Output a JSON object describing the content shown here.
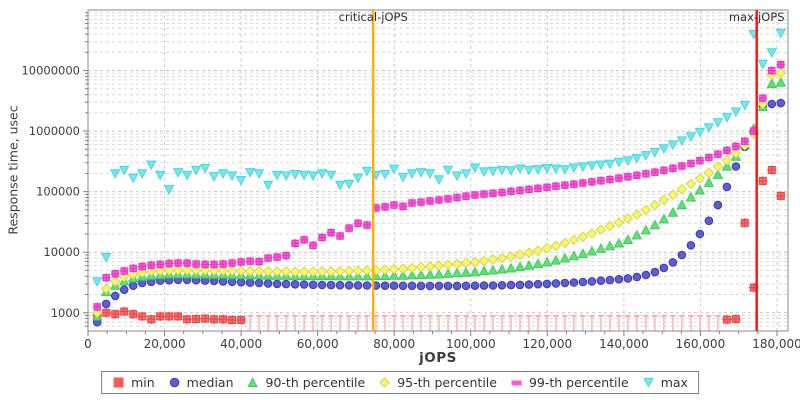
{
  "annotations": {
    "critical_label": "critical-jOPS",
    "max_label": "max-jOPS",
    "critical_jops": 74500,
    "max_jops": 174700,
    "critical_color": "#FFAE00",
    "max_color": "#FF0E0E"
  },
  "axes": {
    "x": {
      "title": "jOPS",
      "min": 0,
      "max": 182900,
      "major_tick_step": 20000,
      "minor_tick_step": 5000,
      "tick_values": [
        0,
        20000,
        40000,
        60000,
        80000,
        100000,
        120000,
        140000,
        160000,
        180000
      ],
      "tick_labels": [
        "0",
        "20,000",
        "40,000",
        "60,000",
        "80,000",
        "100,000",
        "120,000",
        "140,000",
        "160,000",
        "180,000"
      ]
    },
    "y": {
      "title": "Response time, usec",
      "scale": "log",
      "min": 500,
      "max": 100000000,
      "tick_values": [
        1000,
        10000,
        100000,
        1000000,
        10000000
      ],
      "tick_labels": [
        "1000",
        "10000",
        "100000",
        "1000000",
        "10000000"
      ]
    }
  },
  "legend": [
    {
      "label": "min",
      "shape": "square",
      "color": "#FF5A5A",
      "stroke": "#E84545"
    },
    {
      "label": "median",
      "shape": "circle",
      "color": "#5E5ED2",
      "stroke": "#3A3AAE"
    },
    {
      "label": "90-th percentile",
      "shape": "triangle-up",
      "color": "#5FE273",
      "stroke": "#3FC95C"
    },
    {
      "label": "95-th percentile",
      "shape": "diamond",
      "color": "#F7F768",
      "stroke": "#D6D64E"
    },
    {
      "label": "99-th percentile",
      "shape": "bar",
      "color": "#FF54DD",
      "stroke": "#E238BF"
    },
    {
      "label": "max",
      "shape": "triangle-down",
      "color": "#6FE9EF",
      "stroke": "#4ED3DC"
    }
  ],
  "chart_data": {
    "type": "scatter",
    "title": "",
    "xlabel": "jOPS",
    "ylabel": "Response time, usec",
    "grid": true,
    "legend_position": "bottom",
    "clip_threshold_usec": 560,
    "x_jops": [
      2400,
      4750,
      7100,
      9450,
      11800,
      14150,
      16500,
      18850,
      21200,
      23550,
      25900,
      28250,
      30600,
      32950,
      35300,
      37650,
      40000,
      42350,
      44700,
      47050,
      49400,
      51750,
      54100,
      56450,
      58800,
      61150,
      63500,
      65850,
      68200,
      70550,
      72900,
      75250,
      77600,
      79950,
      82300,
      84650,
      87000,
      89350,
      91700,
      94050,
      96400,
      98750,
      101100,
      103450,
      105800,
      108150,
      110500,
      112850,
      115200,
      117550,
      119900,
      122250,
      124600,
      126950,
      129300,
      131650,
      134000,
      136350,
      138700,
      141050,
      143400,
      145750,
      148100,
      150450,
      152800,
      155150,
      157500,
      159850,
      162200,
      164550,
      166900,
      169250,
      171600,
      173950,
      176300,
      178650,
      181000
    ],
    "series": [
      {
        "name": "min",
        "marker": "square-cross",
        "color": "#FF6A6A",
        "stroke": "#E84545",
        "values": [
          900,
          1000,
          950,
          1050,
          950,
          870,
          780,
          870,
          870,
          870,
          780,
          790,
          800,
          780,
          780,
          760,
          760,
          520,
          520,
          520,
          520,
          520,
          520,
          520,
          520,
          520,
          520,
          520,
          520,
          520,
          520,
          520,
          520,
          520,
          520,
          520,
          520,
          520,
          520,
          520,
          520,
          520,
          520,
          520,
          520,
          520,
          520,
          520,
          520,
          520,
          520,
          520,
          520,
          520,
          520,
          520,
          520,
          520,
          520,
          520,
          520,
          520,
          520,
          520,
          520,
          520,
          520,
          520,
          520,
          520,
          770,
          790,
          30500,
          2600,
          150000,
          228000,
          85000
        ]
      },
      {
        "name": "median",
        "marker": "circle",
        "color": "#5E5ED2",
        "stroke": "#3A3AAE",
        "values": [
          700,
          1400,
          1900,
          2400,
          2800,
          3100,
          3250,
          3400,
          3450,
          3500,
          3500,
          3450,
          3400,
          3350,
          3300,
          3250,
          3200,
          3150,
          3100,
          3050,
          3000,
          2980,
          2950,
          2930,
          2900,
          2880,
          2860,
          2850,
          2840,
          2830,
          2820,
          2810,
          2800,
          2800,
          2790,
          2790,
          2780,
          2780,
          2780,
          2780,
          2780,
          2790,
          2800,
          2810,
          2820,
          2840,
          2860,
          2890,
          2920,
          2960,
          3000,
          3050,
          3100,
          3160,
          3220,
          3300,
          3380,
          3470,
          3580,
          3700,
          3900,
          4200,
          4700,
          5500,
          6800,
          9000,
          13000,
          20000,
          33000,
          60000,
          120000,
          260000,
          550000,
          1000000,
          2600000,
          2800000,
          2900000
        ]
      },
      {
        "name": "90-th percentile",
        "marker": "triangle-up",
        "color": "#5FE273",
        "stroke": "#3FC95C",
        "values": [
          870,
          2200,
          2800,
          3300,
          3700,
          3950,
          4100,
          4200,
          4300,
          4350,
          4350,
          4300,
          4300,
          4250,
          4250,
          4200,
          4200,
          4150,
          4150,
          4100,
          4100,
          4100,
          4050,
          4050,
          4050,
          4050,
          4050,
          4000,
          4000,
          4000,
          4000,
          4050,
          4050,
          4100,
          4100,
          4150,
          4200,
          4250,
          4300,
          4400,
          4500,
          4600,
          4700,
          4850,
          5000,
          5200,
          5400,
          5700,
          6000,
          6400,
          6800,
          7300,
          7900,
          8600,
          9400,
          10300,
          11400,
          12600,
          14000,
          16000,
          19000,
          23000,
          28000,
          35000,
          45000,
          60000,
          80000,
          105000,
          140000,
          190000,
          260000,
          380000,
          600000,
          1100000,
          2500000,
          6000000,
          6300000
        ]
      },
      {
        "name": "95-th percentile",
        "marker": "diamond",
        "color": "#F7F768",
        "stroke": "#D6D64E",
        "values": [
          1000,
          2500,
          3300,
          3900,
          4300,
          4600,
          4800,
          4900,
          5000,
          5050,
          5050,
          5000,
          5000,
          4950,
          4950,
          4900,
          4900,
          4850,
          4850,
          4800,
          4800,
          4800,
          4750,
          4750,
          4750,
          4800,
          4800,
          4850,
          4900,
          4950,
          5000,
          5050,
          5150,
          5250,
          5350,
          5500,
          5650,
          5800,
          6000,
          6200,
          6400,
          6650,
          6900,
          7200,
          7600,
          8000,
          8500,
          9100,
          9800,
          10600,
          11600,
          12800,
          14200,
          16000,
          18000,
          20500,
          23500,
          27000,
          31000,
          36000,
          42000,
          50000,
          60000,
          73000,
          89000,
          110000,
          135000,
          165000,
          205000,
          260000,
          330000,
          430000,
          580000,
          900000,
          2800000,
          8500000,
          9000000
        ]
      },
      {
        "name": "99-th percentile",
        "marker": "square-cross-small",
        "color": "#FF54DD",
        "stroke": "#E238BF",
        "values": [
          1250,
          3800,
          4400,
          4900,
          5400,
          5800,
          6100,
          6300,
          6500,
          6600,
          6600,
          6400,
          6300,
          6300,
          6400,
          6600,
          6900,
          7100,
          7000,
          8000,
          8300,
          8800,
          14000,
          16000,
          13000,
          17500,
          21000,
          18500,
          25000,
          30000,
          28000,
          54000,
          56000,
          60000,
          57000,
          65000,
          67000,
          70000,
          73000,
          76000,
          80000,
          84000,
          88000,
          91000,
          94000,
          97000,
          101000,
          105000,
          109000,
          113000,
          118000,
          123000,
          128000,
          133000,
          139000,
          145000,
          152000,
          159000,
          167000,
          176000,
          186000,
          197000,
          210000,
          225000,
          243000,
          265000,
          292000,
          325000,
          365000,
          415000,
          480000,
          560000,
          680000,
          1000000,
          3500000,
          10000000,
          12500000
        ]
      },
      {
        "name": "max",
        "marker": "triangle-down",
        "color": "#6FE9EF",
        "stroke": "#4ED3DC",
        "values": [
          3300,
          8300,
          200000,
          230000,
          170000,
          200000,
          280000,
          190000,
          110000,
          210000,
          190000,
          230000,
          245000,
          180000,
          200000,
          185000,
          155000,
          210000,
          200000,
          130000,
          190000,
          185000,
          195000,
          190000,
          185000,
          200000,
          190000,
          130000,
          135000,
          170000,
          220000,
          190000,
          195000,
          240000,
          175000,
          200000,
          210000,
          200000,
          160000,
          230000,
          185000,
          200000,
          250000,
          215000,
          220000,
          230000,
          225000,
          240000,
          230000,
          235000,
          245000,
          240000,
          235000,
          250000,
          260000,
          270000,
          280000,
          290000,
          310000,
          330000,
          360000,
          400000,
          450000,
          520000,
          600000,
          700000,
          820000,
          970000,
          1150000,
          1400000,
          1700000,
          2100000,
          2700000,
          40000000,
          13000000,
          20000000,
          42000000
        ]
      }
    ]
  }
}
